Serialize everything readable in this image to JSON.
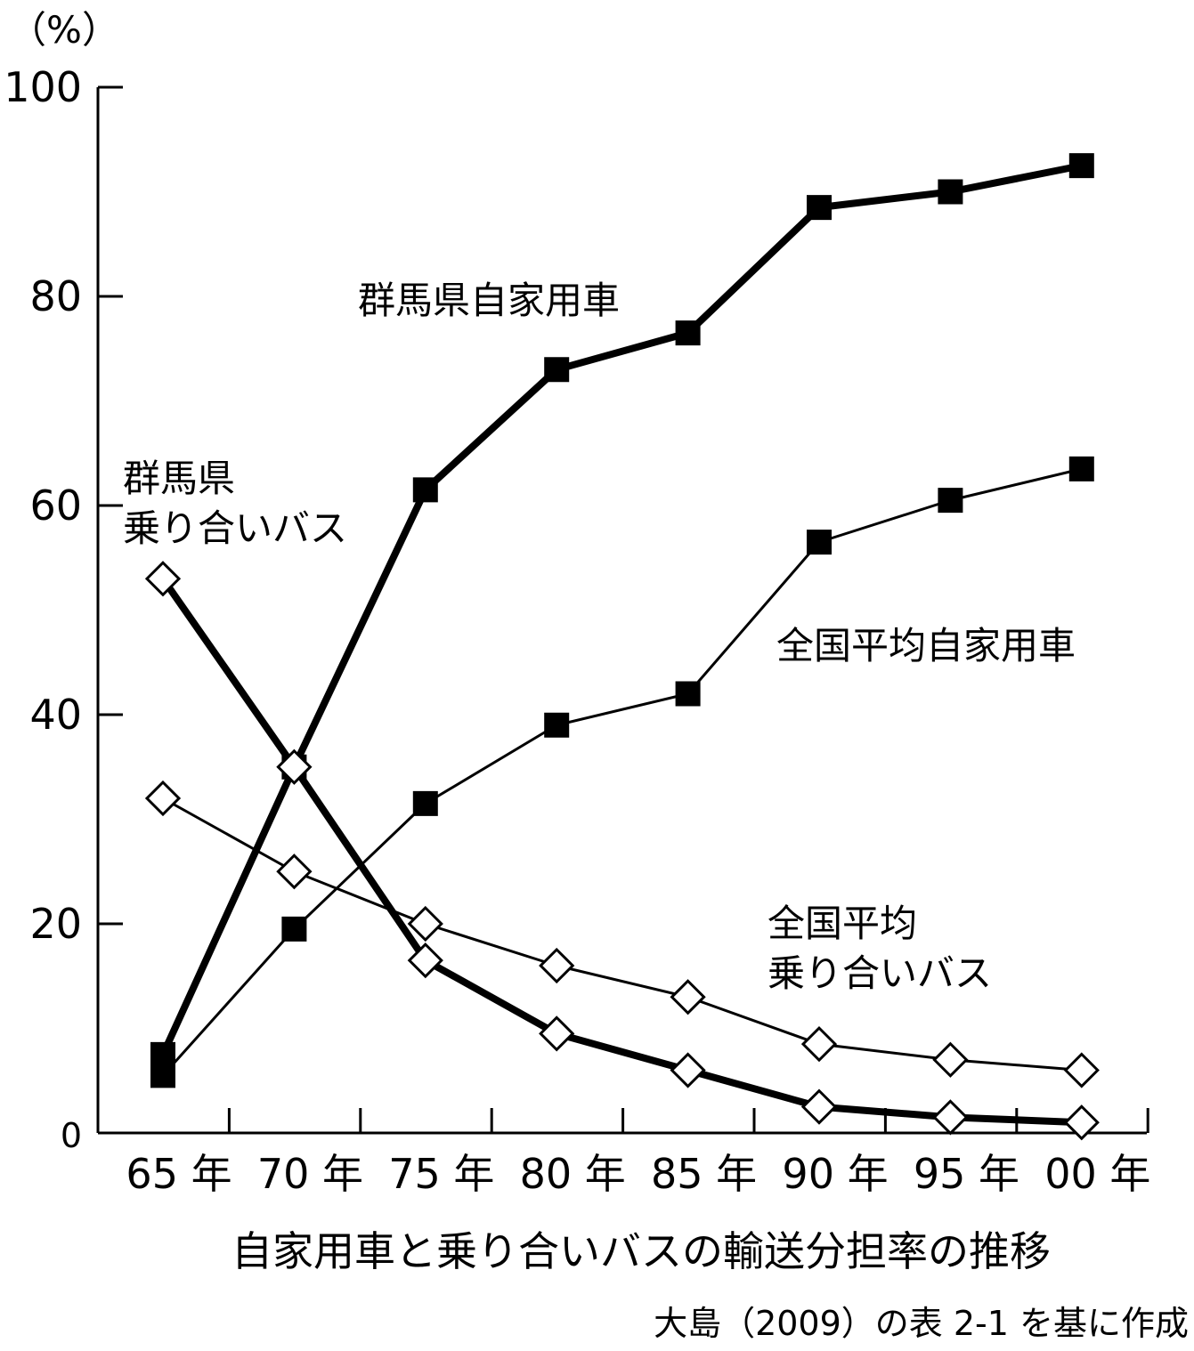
{
  "chart_data": {
    "type": "line",
    "title": "自家用車と乗り合いバスの輸送分担率の推移",
    "source": "大島（2009）の表 2-1 を基に作成",
    "ylabel": "（%）",
    "xlabel": "",
    "ylim": [
      0,
      100
    ],
    "yticks": [
      "0",
      "20",
      "40",
      "60",
      "80",
      "100"
    ],
    "ytick_values": [
      0,
      20,
      40,
      60,
      80,
      100
    ],
    "x": [
      1965,
      1970,
      1975,
      1980,
      1985,
      1990,
      1995,
      2000
    ],
    "categories": [
      "65 年",
      "70 年",
      "75 年",
      "80 年",
      "85 年",
      "90 年",
      "95 年",
      "00 年"
    ],
    "grid": false,
    "series": [
      {
        "name": "群馬県自家用車",
        "marker": "square-filled",
        "line": "thick",
        "values": [
          7.5,
          35,
          61.5,
          73,
          76.5,
          88.5,
          90,
          92.5
        ]
      },
      {
        "name": "全国平均自家用車",
        "marker": "square-filled",
        "line": "thin",
        "values": [
          5.5,
          19.5,
          31.5,
          39,
          42,
          56.5,
          60.5,
          63.5
        ]
      },
      {
        "name": "群馬県\n乗り合いバス",
        "label_lines": [
          "群馬県",
          "乗り合いバス"
        ],
        "marker": "diamond-open",
        "line": "thick",
        "values": [
          53,
          35,
          16.5,
          9.5,
          6,
          2.5,
          1.5,
          1
        ]
      },
      {
        "name": "全国平均\n乗り合いバス",
        "label_lines": [
          "全国平均",
          "乗り合いバス"
        ],
        "marker": "diamond-open",
        "line": "thin",
        "values": [
          32,
          25,
          20,
          16,
          13,
          8.5,
          7,
          6
        ]
      }
    ]
  }
}
